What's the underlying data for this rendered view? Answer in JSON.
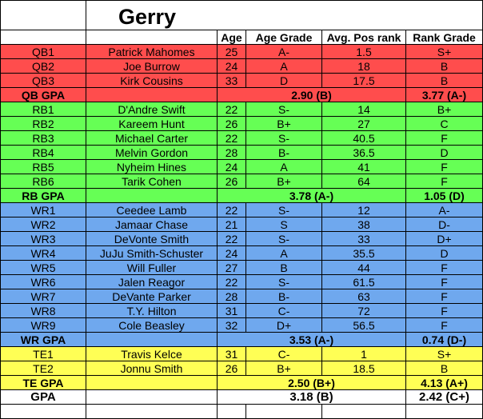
{
  "sheet": {
    "title": "Gerry",
    "headers": [
      "Age",
      "Age Grade",
      "Avg. Pos rank",
      "Rank Grade"
    ],
    "colors": {
      "qb": "#ff4d4d",
      "rb": "#66ff55",
      "wr": "#6fa8ee",
      "te": "#ffff55"
    },
    "sections": [
      {
        "key": "qb",
        "players": [
          {
            "pos": "QB1",
            "name": "Patrick Mahomes",
            "age": "25",
            "age_grade": "A-",
            "avg_rank": "1.5",
            "rank_grade": "S+"
          },
          {
            "pos": "QB2",
            "name": "Joe Burrow",
            "age": "24",
            "age_grade": "A",
            "avg_rank": "18",
            "rank_grade": "B"
          },
          {
            "pos": "QB3",
            "name": "Kirk Cousins",
            "age": "33",
            "age_grade": "D",
            "avg_rank": "17.5",
            "rank_grade": "B"
          }
        ],
        "gpa": {
          "label": "QB GPA",
          "age_gpa": "2.90 (B)",
          "rank_gpa": "3.77 (A-)"
        }
      },
      {
        "key": "rb",
        "players": [
          {
            "pos": "RB1",
            "name": "D'Andre Swift",
            "age": "22",
            "age_grade": "S-",
            "avg_rank": "14",
            "rank_grade": "B+"
          },
          {
            "pos": "RB2",
            "name": "Kareem Hunt",
            "age": "26",
            "age_grade": "B+",
            "avg_rank": "27",
            "rank_grade": "C"
          },
          {
            "pos": "RB3",
            "name": "Michael Carter",
            "age": "22",
            "age_grade": "S-",
            "avg_rank": "40.5",
            "rank_grade": "F"
          },
          {
            "pos": "RB4",
            "name": "Melvin Gordon",
            "age": "28",
            "age_grade": "B-",
            "avg_rank": "36.5",
            "rank_grade": "D"
          },
          {
            "pos": "RB5",
            "name": "Nyheim Hines",
            "age": "24",
            "age_grade": "A",
            "avg_rank": "41",
            "rank_grade": "F"
          },
          {
            "pos": "RB6",
            "name": "Tarik Cohen",
            "age": "26",
            "age_grade": "B+",
            "avg_rank": "64",
            "rank_grade": "F"
          }
        ],
        "gpa": {
          "label": "RB GPA",
          "age_gpa": "3.78 (A-)",
          "rank_gpa": "1.05 (D)"
        }
      },
      {
        "key": "wr",
        "players": [
          {
            "pos": "WR1",
            "name": "Ceedee Lamb",
            "age": "22",
            "age_grade": "S-",
            "avg_rank": "12",
            "rank_grade": "A-"
          },
          {
            "pos": "WR2",
            "name": "Jamaar Chase",
            "age": "21",
            "age_grade": "S",
            "avg_rank": "38",
            "rank_grade": "D-"
          },
          {
            "pos": "WR3",
            "name": "DeVonte Smith",
            "age": "22",
            "age_grade": "S-",
            "avg_rank": "33",
            "rank_grade": "D+"
          },
          {
            "pos": "WR4",
            "name": "JuJu Smith-Schuster",
            "age": "24",
            "age_grade": "A",
            "avg_rank": "35.5",
            "rank_grade": "D"
          },
          {
            "pos": "WR5",
            "name": "Will Fuller",
            "age": "27",
            "age_grade": "B",
            "avg_rank": "44",
            "rank_grade": "F"
          },
          {
            "pos": "WR6",
            "name": "Jalen Reagor",
            "age": "22",
            "age_grade": "S-",
            "avg_rank": "61.5",
            "rank_grade": "F"
          },
          {
            "pos": "WR7",
            "name": "DeVante Parker",
            "age": "28",
            "age_grade": "B-",
            "avg_rank": "63",
            "rank_grade": "F"
          },
          {
            "pos": "WR8",
            "name": "T.Y. Hilton",
            "age": "31",
            "age_grade": "C-",
            "avg_rank": "72",
            "rank_grade": "F"
          },
          {
            "pos": "WR9",
            "name": "Cole Beasley",
            "age": "32",
            "age_grade": "D+",
            "avg_rank": "56.5",
            "rank_grade": "F"
          }
        ],
        "gpa": {
          "label": "WR GPA",
          "age_gpa": "3.53 (A-)",
          "rank_gpa": "0.74 (D-)"
        }
      },
      {
        "key": "te",
        "players": [
          {
            "pos": "TE1",
            "name": "Travis Kelce",
            "age": "31",
            "age_grade": "C-",
            "avg_rank": "1",
            "rank_grade": "S+"
          },
          {
            "pos": "TE2",
            "name": "Jonnu Smith",
            "age": "26",
            "age_grade": "B+",
            "avg_rank": "18.5",
            "rank_grade": "B"
          }
        ],
        "gpa": {
          "label": "TE GPA",
          "age_gpa": "2.50 (B+)",
          "rank_gpa": "4.13 (A+)"
        }
      }
    ],
    "overall": {
      "label": "GPA",
      "age_gpa": "3.18 (B)",
      "rank_gpa": "2.42 (C+)"
    }
  }
}
